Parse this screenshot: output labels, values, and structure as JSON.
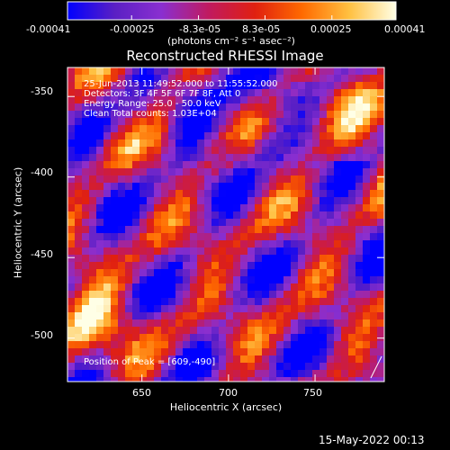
{
  "colorbar": {
    "tick_labels": [
      "-0.00041",
      "-0.00025",
      "-8.3e-05",
      "8.3e-05",
      "0.00025",
      "0.00041"
    ],
    "tick_values": [
      -0.00041,
      -0.00025,
      -8.3e-05,
      8.3e-05,
      0.00025,
      0.00041
    ],
    "range": [
      -0.00041,
      0.00041
    ],
    "unit_label": "(photons cm⁻² s⁻¹ asec⁻²)",
    "colors": [
      "#0000ff",
      "#5a1fc4",
      "#8a2fd0",
      "#c01a60",
      "#e02010",
      "#ff6a00",
      "#ffc040",
      "#ffffe6"
    ]
  },
  "chart_data": {
    "type": "heatmap",
    "title": "Reconstructed RHESSI Image",
    "xlabel": "Heliocentric X (arcsec)",
    "ylabel": "Heliocentric Y (arcsec)",
    "xlim": [
      607,
      790
    ],
    "ylim": [
      -527,
      -332
    ],
    "x_ticks": [
      650,
      700,
      750
    ],
    "y_ticks": [
      -350,
      -400,
      -450,
      -500
    ],
    "peak_position": [
      609,
      -490
    ]
  },
  "annotations": {
    "time_range": "25-Jun-2013 11:49:52.000 to 11:55:52.000",
    "detectors": "Detectors: 3F 4F 5F 6F 7F 8F, Att 0",
    "energy": "Energy Range: 25.0 - 50.0 keV",
    "clean": "Clean     Total counts: 1.03E+04",
    "peak": "Position of Peak = [609,-490]"
  },
  "footer": {
    "timestamp": "15-May-2022 00:13"
  }
}
